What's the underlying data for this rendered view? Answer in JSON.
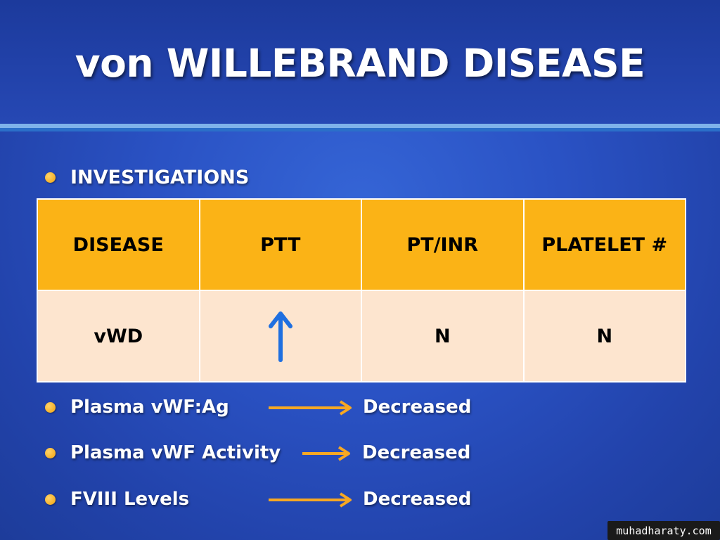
{
  "slide": {
    "title": "von WILLEBRAND DISEASE",
    "section_heading": "INVESTIGATIONS"
  },
  "table": {
    "headers": [
      "DISEASE",
      "PTT",
      "PT/INR",
      "PLATELET #"
    ],
    "row": {
      "disease": "vWD",
      "ptt_icon": "up-arrow-icon",
      "pt_inr": "N",
      "platelet": "N"
    }
  },
  "findings": [
    {
      "label": "Plasma vWF:Ag",
      "value": "Decreased"
    },
    {
      "label": "Plasma vWF Activity",
      "value": "Decreased"
    },
    {
      "label": "FVIII Levels",
      "value": "Decreased"
    }
  ],
  "watermark": "muhadharaty.com",
  "colors": {
    "background": "#2a52c4",
    "table_header": "#fbb316",
    "table_body": "#fde5cf",
    "bullet": "#f1a20c",
    "result_arrow": "#f7a823",
    "up_arrow": "#1f6fe0",
    "rule_light": "#7fb2ea"
  }
}
